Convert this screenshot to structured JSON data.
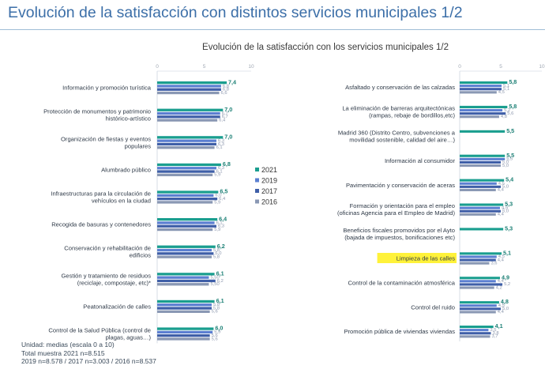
{
  "page": {
    "title": "Evolución de la satisfacción con distintos servicios municipales 1/2"
  },
  "footer": {
    "line1": "Unidad: medias (escala 0 a 10)",
    "line2": "Total muestra 2021 n=8.515",
    "line3": "2019 n=8.578 / 2017 n=3.003 / 2016 n=8.537"
  },
  "colors": {
    "2021": "#1a9e8f",
    "2019": "#5b7fd1",
    "2017": "#3f5fa8",
    "2016": "#8a98b4",
    "highlight": "#fff23a"
  },
  "chart_data": {
    "type": "bar",
    "orientation": "horizontal",
    "title": "Evolución de la satisfacción con los servicios municipales 1/2",
    "xlim": [
      0,
      10
    ],
    "ticks": [
      "0",
      "5",
      "10"
    ],
    "series": [
      {
        "name": "2021"
      },
      {
        "name": "2019"
      },
      {
        "name": "2017"
      },
      {
        "name": "2016"
      }
    ],
    "legend_position": "center",
    "panels": [
      {
        "categories": [
          {
            "label": "Información y promoción turística",
            "values": [
              7.4,
              6.8,
              6.8,
              6.6
            ],
            "labels": [
              "7,4",
              "6,8",
              "6,8",
              "6,6"
            ]
          },
          {
            "label": "Protección de monumentos y patrimonio histórico-artístico",
            "values": [
              7.0,
              6.7,
              6.7,
              6.4
            ],
            "labels": [
              "7,0",
              "6,7",
              "6,7",
              "6,4"
            ]
          },
          {
            "label": "Organización de fiestas y eventos populares",
            "values": [
              7.0,
              6.3,
              6.3,
              6.1
            ],
            "labels": [
              "7,0",
              "6,3",
              "6,3",
              "6,1"
            ]
          },
          {
            "label": "Alumbrado público",
            "values": [
              6.8,
              6.3,
              6.1,
              5.9
            ],
            "labels": [
              "6,8",
              "6,3",
              "6,1",
              "5,9"
            ]
          },
          {
            "label": "Infraestructuras para la circulación de vehículos en la ciudad",
            "values": [
              6.5,
              6.0,
              6.4,
              5.9
            ],
            "labels": [
              "6,5",
              "6,0",
              "6,4",
              "5,9"
            ]
          },
          {
            "label": "Recogida de basuras y contenedores",
            "values": [
              6.4,
              6.1,
              6.3,
              5.9
            ],
            "labels": [
              "6,4",
              "6,1",
              "6,3",
              "5,9"
            ]
          },
          {
            "label": "Conservación y rehabilitación de edificios",
            "values": [
              6.2,
              5.8,
              6.0,
              5.8
            ],
            "labels": [
              "6,2",
              "5,8",
              "6,0",
              "5,8"
            ]
          },
          {
            "label": "Gestión y tratamiento de residuos (reciclaje, compostaje, etc)*",
            "values": [
              6.1,
              5.5,
              6.2,
              5.5
            ],
            "labels": [
              "6,1",
              "5,50",
              "6,2",
              "5,50"
            ]
          },
          {
            "label": "Peatonalización de calles",
            "values": [
              6.1,
              5.8,
              5.8,
              5.6
            ],
            "labels": [
              "6,1",
              "5,8",
              "5,8",
              "5,6"
            ]
          },
          {
            "label": "Control de la Salud Pública (control de plagas, aguas…)",
            "values": [
              6.0,
              5.9,
              5.6,
              5.6
            ],
            "labels": [
              "6,0",
              "5,9",
              "5,6",
              "5,6"
            ]
          }
        ]
      },
      {
        "categories": [
          {
            "label": "Asfaltado y conservación de las calzadas",
            "values": [
              5.8,
              5.1,
              5.1,
              4.5
            ],
            "labels": [
              "5,8",
              "5,1",
              "5,1",
              "4,5"
            ]
          },
          {
            "label": "La eliminación de barreras arquitectónicas (rampas, rebaje de bordillos,etc)",
            "values": [
              5.8,
              5.2,
              5.6,
              4.8
            ],
            "labels": [
              "5,8",
              "5,2",
              "5,6",
              "4,8"
            ]
          },
          {
            "label": "Madrid 360 (Distrito Centro, subvenciones a movilidad sostenible, calidad del aire…)",
            "values": [
              5.5,
              null,
              null,
              null
            ],
            "labels": [
              "5,5",
              "",
              "",
              ""
            ]
          },
          {
            "label": "Información al consumidor",
            "values": [
              5.5,
              5.5,
              5.0,
              5.0
            ],
            "labels": [
              "5,5",
              "5,5",
              "5,0",
              "5,0"
            ]
          },
          {
            "label": "Pavimentación y conservación de aceras",
            "values": [
              5.4,
              4.5,
              5.0,
              4.4
            ],
            "labels": [
              "5,4",
              "4,5",
              "5,0",
              "4,4"
            ]
          },
          {
            "label": "Formación y orientación para el empleo (oficinas Agencia para el Empleo de Madrid)",
            "values": [
              5.3,
              4.9,
              5.0,
              4.4
            ],
            "labels": [
              "5,3",
              "4,9",
              "5,0",
              "4,4"
            ]
          },
          {
            "label": "Beneficios fiscales promovidos por el Ayto (bajada de impuestos, bonificaciones etc)",
            "values": [
              5.3,
              null,
              null,
              null
            ],
            "labels": [
              "5,3",
              "",
              "",
              ""
            ]
          },
          {
            "label": "Limpieza de las calles",
            "values": [
              5.1,
              4.5,
              4.4,
              3.6
            ],
            "labels": [
              "5,1",
              "4,5",
              "4,4",
              "3,6"
            ],
            "highlight": true
          },
          {
            "label": "Control de la contaminación atmosférica",
            "values": [
              4.9,
              4.4,
              5.2,
              4.2
            ],
            "labels": [
              "4,9",
              "4,4",
              "5,2",
              "4,2"
            ]
          },
          {
            "label": "Control del ruido",
            "values": [
              4.8,
              4.5,
              5.0,
              4.4
            ],
            "labels": [
              "4,8",
              "4,5",
              "5,0",
              "4,4"
            ]
          },
          {
            "label": "Promoción pública de viviendas viviendas",
            "values": [
              4.1,
              3.5,
              3.8,
              3.7
            ],
            "labels": [
              "4,1",
              "3,5",
              "3,8",
              "3,7"
            ]
          }
        ]
      }
    ]
  }
}
